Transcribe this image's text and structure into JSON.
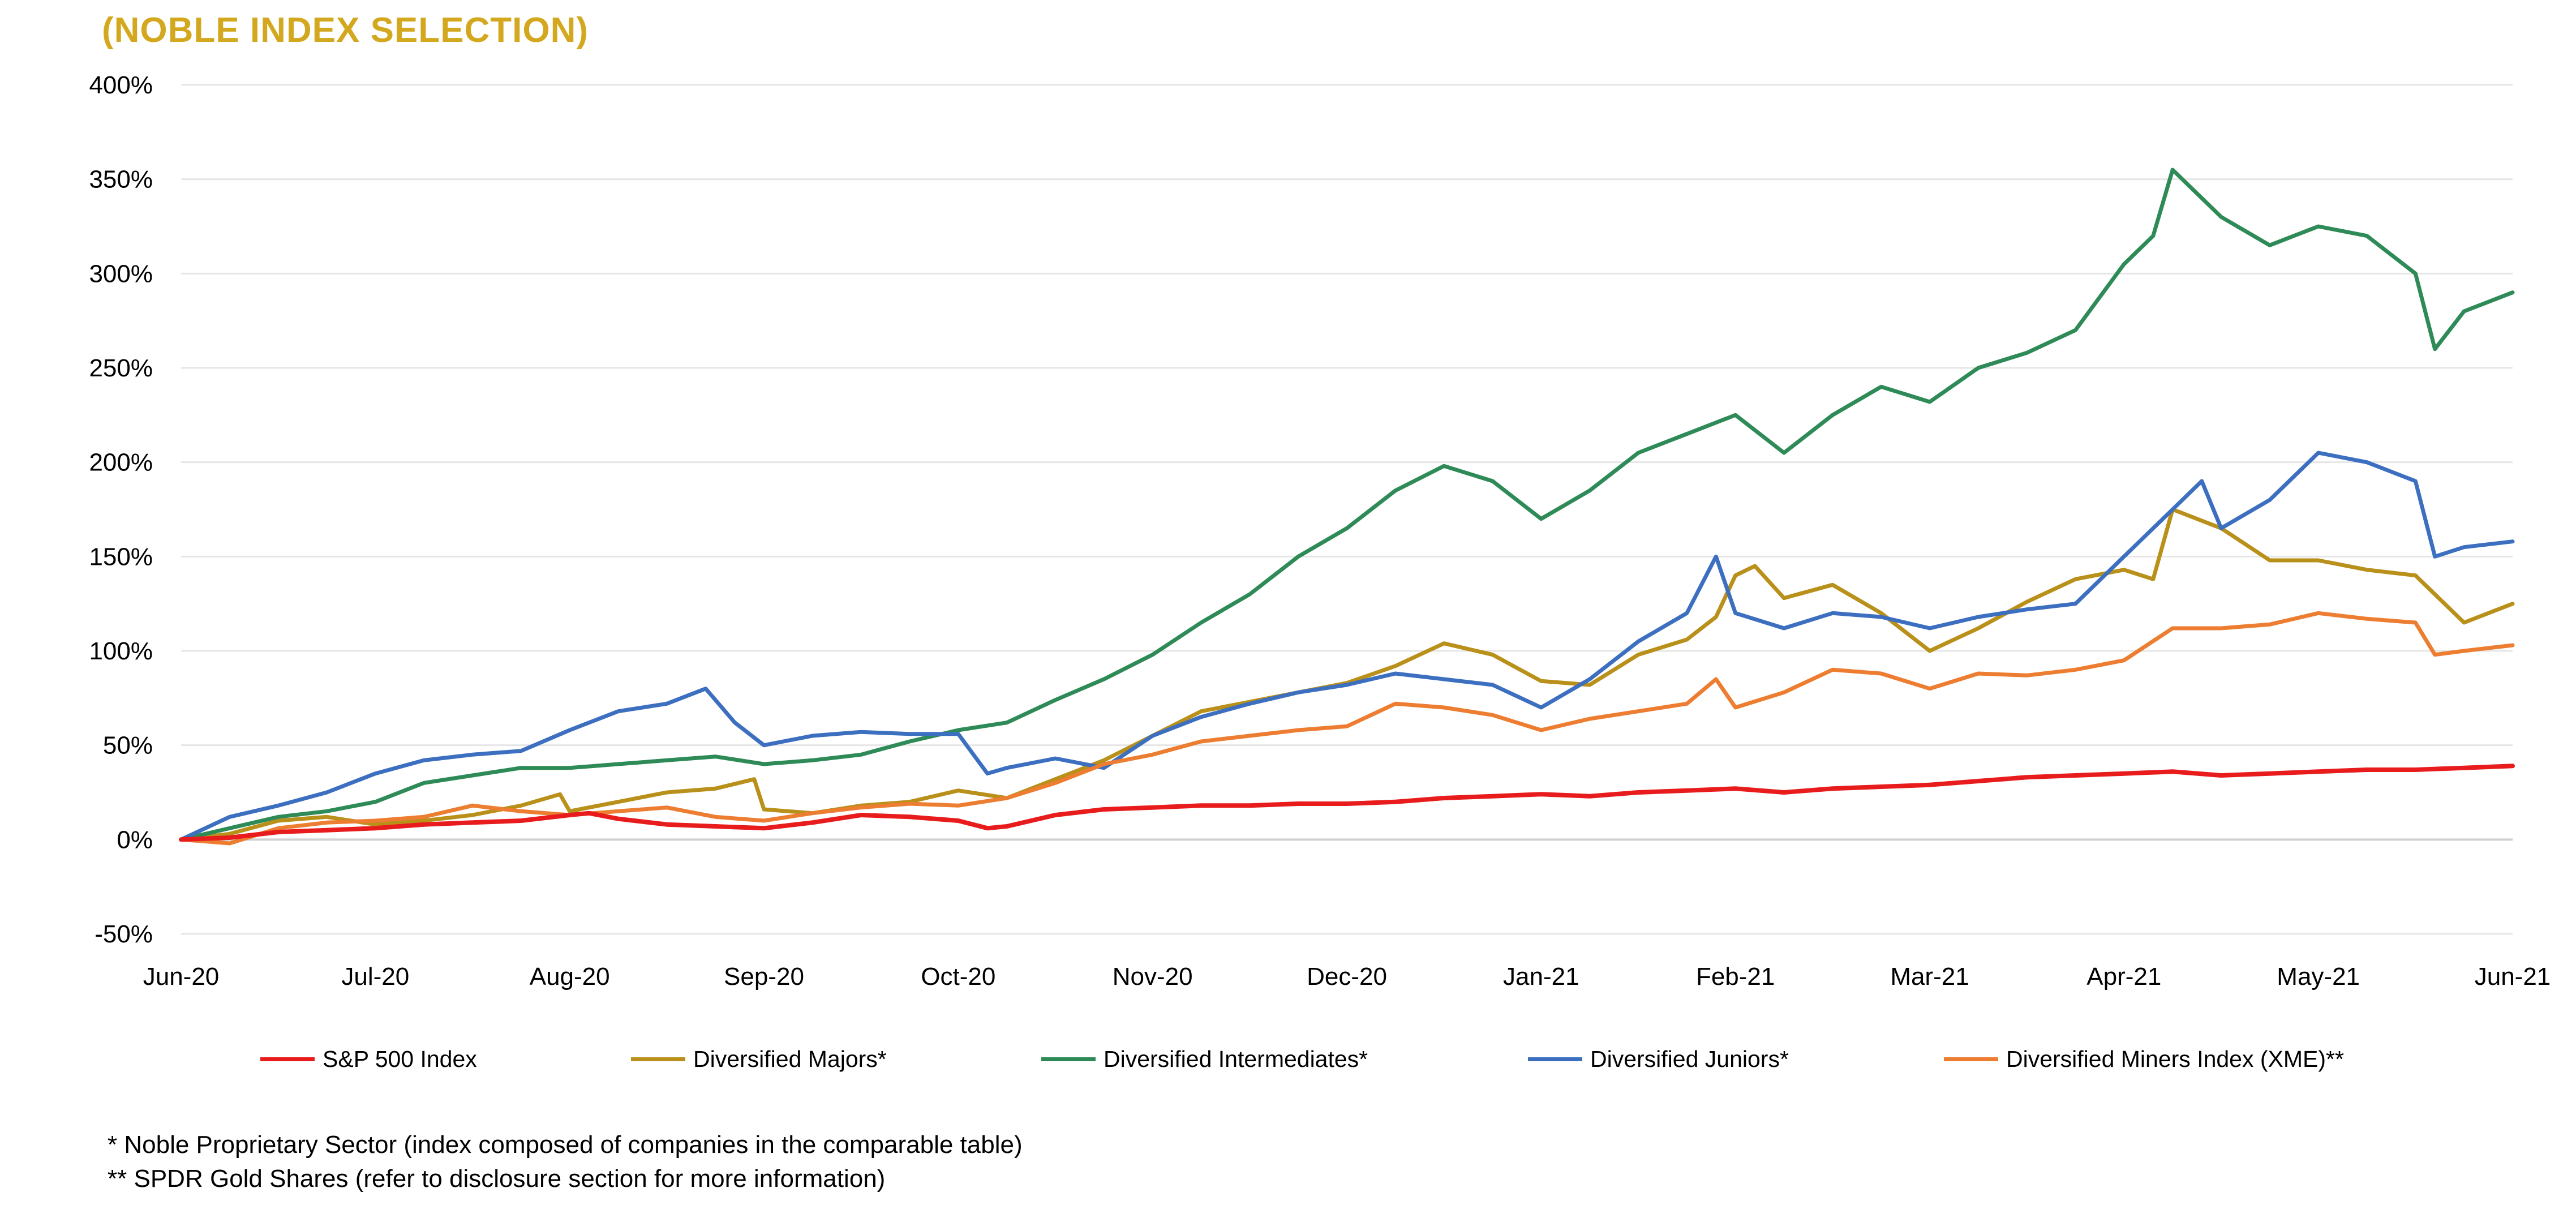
{
  "title": "(NOBLE INDEX SELECTION)",
  "chart_data": {
    "type": "line",
    "ylim": [
      -50,
      400
    ],
    "y_ticks": [
      "-50%",
      "0%",
      "50%",
      "100%",
      "150%",
      "200%",
      "250%",
      "300%",
      "350%",
      "400%"
    ],
    "y_tick_values": [
      -50,
      0,
      50,
      100,
      150,
      200,
      250,
      300,
      350,
      400
    ],
    "x_ticks": [
      "Jun-20",
      "Jul-20",
      "Aug-20",
      "Sep-20",
      "Oct-20",
      "Nov-20",
      "Dec-20",
      "Jan-21",
      "Feb-21",
      "Mar-21",
      "Apr-21",
      "May-21",
      "Jun-21"
    ],
    "x_tick_positions": [
      0,
      1,
      2,
      3,
      4,
      5,
      6,
      7,
      8,
      9,
      10,
      11,
      12
    ],
    "grid": true,
    "legend_position": "bottom",
    "series": [
      {
        "name": "S&P 500 Index",
        "color": "#E81C1C",
        "points": [
          [
            0,
            0
          ],
          [
            0.25,
            1
          ],
          [
            0.5,
            4
          ],
          [
            0.75,
            5
          ],
          [
            1,
            6
          ],
          [
            1.25,
            8
          ],
          [
            1.5,
            9
          ],
          [
            1.75,
            10
          ],
          [
            2,
            13
          ],
          [
            2.1,
            14
          ],
          [
            2.25,
            11
          ],
          [
            2.5,
            8
          ],
          [
            2.75,
            7
          ],
          [
            3,
            6
          ],
          [
            3.25,
            9
          ],
          [
            3.5,
            13
          ],
          [
            3.75,
            12
          ],
          [
            4,
            10
          ],
          [
            4.15,
            6
          ],
          [
            4.25,
            7
          ],
          [
            4.5,
            13
          ],
          [
            4.75,
            16
          ],
          [
            5,
            17
          ],
          [
            5.25,
            18
          ],
          [
            5.5,
            18
          ],
          [
            5.75,
            19
          ],
          [
            6,
            19
          ],
          [
            6.25,
            20
          ],
          [
            6.5,
            22
          ],
          [
            6.75,
            23
          ],
          [
            7,
            24
          ],
          [
            7.25,
            23
          ],
          [
            7.5,
            25
          ],
          [
            7.75,
            26
          ],
          [
            8,
            27
          ],
          [
            8.25,
            25
          ],
          [
            8.5,
            27
          ],
          [
            8.75,
            28
          ],
          [
            9,
            29
          ],
          [
            9.25,
            31
          ],
          [
            9.5,
            33
          ],
          [
            9.75,
            34
          ],
          [
            10,
            35
          ],
          [
            10.25,
            36
          ],
          [
            10.5,
            34
          ],
          [
            10.75,
            35
          ],
          [
            11,
            36
          ],
          [
            11.25,
            37
          ],
          [
            11.5,
            37
          ],
          [
            11.75,
            38
          ],
          [
            12,
            39
          ]
        ]
      },
      {
        "name": "Diversified Majors*",
        "color": "#B8901A",
        "points": [
          [
            0,
            0
          ],
          [
            0.25,
            3
          ],
          [
            0.5,
            10
          ],
          [
            0.75,
            12
          ],
          [
            1,
            8
          ],
          [
            1.25,
            10
          ],
          [
            1.5,
            13
          ],
          [
            1.75,
            18
          ],
          [
            1.95,
            24
          ],
          [
            2,
            15
          ],
          [
            2.25,
            20
          ],
          [
            2.5,
            25
          ],
          [
            2.75,
            27
          ],
          [
            2.95,
            32
          ],
          [
            3,
            16
          ],
          [
            3.25,
            14
          ],
          [
            3.5,
            18
          ],
          [
            3.75,
            20
          ],
          [
            4,
            26
          ],
          [
            4.25,
            22
          ],
          [
            4.5,
            32
          ],
          [
            4.75,
            42
          ],
          [
            5,
            55
          ],
          [
            5.25,
            68
          ],
          [
            5.5,
            73
          ],
          [
            5.75,
            78
          ],
          [
            6,
            83
          ],
          [
            6.25,
            92
          ],
          [
            6.5,
            104
          ],
          [
            6.75,
            98
          ],
          [
            7,
            84
          ],
          [
            7.25,
            82
          ],
          [
            7.5,
            98
          ],
          [
            7.75,
            106
          ],
          [
            7.9,
            118
          ],
          [
            8,
            140
          ],
          [
            8.1,
            145
          ],
          [
            8.25,
            128
          ],
          [
            8.5,
            135
          ],
          [
            8.75,
            120
          ],
          [
            9,
            100
          ],
          [
            9.25,
            112
          ],
          [
            9.5,
            126
          ],
          [
            9.75,
            138
          ],
          [
            10,
            143
          ],
          [
            10.15,
            138
          ],
          [
            10.25,
            175
          ],
          [
            10.5,
            165
          ],
          [
            10.75,
            148
          ],
          [
            11,
            148
          ],
          [
            11.25,
            143
          ],
          [
            11.5,
            140
          ],
          [
            11.75,
            115
          ],
          [
            12,
            125
          ]
        ]
      },
      {
        "name": "Diversified Intermediates*",
        "color": "#2E8B57",
        "points": [
          [
            0,
            0
          ],
          [
            0.25,
            6
          ],
          [
            0.5,
            12
          ],
          [
            0.75,
            15
          ],
          [
            1,
            20
          ],
          [
            1.25,
            30
          ],
          [
            1.5,
            34
          ],
          [
            1.75,
            38
          ],
          [
            2,
            38
          ],
          [
            2.25,
            40
          ],
          [
            2.5,
            42
          ],
          [
            2.75,
            44
          ],
          [
            3,
            40
          ],
          [
            3.25,
            42
          ],
          [
            3.5,
            45
          ],
          [
            3.75,
            52
          ],
          [
            4,
            58
          ],
          [
            4.25,
            62
          ],
          [
            4.5,
            74
          ],
          [
            4.75,
            85
          ],
          [
            5,
            98
          ],
          [
            5.25,
            115
          ],
          [
            5.5,
            130
          ],
          [
            5.75,
            150
          ],
          [
            6,
            165
          ],
          [
            6.25,
            185
          ],
          [
            6.5,
            198
          ],
          [
            6.75,
            190
          ],
          [
            7,
            170
          ],
          [
            7.25,
            185
          ],
          [
            7.5,
            205
          ],
          [
            7.75,
            215
          ],
          [
            8,
            225
          ],
          [
            8.25,
            205
          ],
          [
            8.5,
            225
          ],
          [
            8.75,
            240
          ],
          [
            9,
            232
          ],
          [
            9.25,
            250
          ],
          [
            9.5,
            258
          ],
          [
            9.75,
            270
          ],
          [
            10,
            305
          ],
          [
            10.15,
            320
          ],
          [
            10.25,
            355
          ],
          [
            10.5,
            330
          ],
          [
            10.75,
            315
          ],
          [
            11,
            325
          ],
          [
            11.25,
            320
          ],
          [
            11.5,
            300
          ],
          [
            11.6,
            260
          ],
          [
            11.75,
            280
          ],
          [
            12,
            290
          ]
        ]
      },
      {
        "name": "Diversified Juniors*",
        "color": "#3D6FC0",
        "points": [
          [
            0,
            0
          ],
          [
            0.25,
            12
          ],
          [
            0.5,
            18
          ],
          [
            0.75,
            25
          ],
          [
            1,
            35
          ],
          [
            1.25,
            42
          ],
          [
            1.5,
            45
          ],
          [
            1.75,
            47
          ],
          [
            2,
            58
          ],
          [
            2.25,
            68
          ],
          [
            2.5,
            72
          ],
          [
            2.7,
            80
          ],
          [
            2.85,
            62
          ],
          [
            3,
            50
          ],
          [
            3.25,
            55
          ],
          [
            3.5,
            57
          ],
          [
            3.75,
            56
          ],
          [
            4,
            56
          ],
          [
            4.15,
            35
          ],
          [
            4.25,
            38
          ],
          [
            4.5,
            43
          ],
          [
            4.75,
            38
          ],
          [
            5,
            55
          ],
          [
            5.25,
            65
          ],
          [
            5.5,
            72
          ],
          [
            5.75,
            78
          ],
          [
            6,
            82
          ],
          [
            6.25,
            88
          ],
          [
            6.5,
            85
          ],
          [
            6.75,
            82
          ],
          [
            7,
            70
          ],
          [
            7.25,
            85
          ],
          [
            7.5,
            105
          ],
          [
            7.75,
            120
          ],
          [
            7.9,
            150
          ],
          [
            8,
            120
          ],
          [
            8.25,
            112
          ],
          [
            8.5,
            120
          ],
          [
            8.75,
            118
          ],
          [
            9,
            112
          ],
          [
            9.25,
            118
          ],
          [
            9.5,
            122
          ],
          [
            9.75,
            125
          ],
          [
            10,
            150
          ],
          [
            10.25,
            175
          ],
          [
            10.4,
            190
          ],
          [
            10.5,
            165
          ],
          [
            10.75,
            180
          ],
          [
            11,
            205
          ],
          [
            11.25,
            200
          ],
          [
            11.5,
            190
          ],
          [
            11.6,
            150
          ],
          [
            11.75,
            155
          ],
          [
            12,
            158
          ]
        ]
      },
      {
        "name": "Diversified Miners Index (XME)**",
        "color": "#ED7D31",
        "points": [
          [
            0,
            0
          ],
          [
            0.25,
            -2
          ],
          [
            0.5,
            6
          ],
          [
            0.75,
            9
          ],
          [
            1,
            10
          ],
          [
            1.25,
            12
          ],
          [
            1.5,
            18
          ],
          [
            1.75,
            15
          ],
          [
            2,
            13
          ],
          [
            2.25,
            15
          ],
          [
            2.5,
            17
          ],
          [
            2.75,
            12
          ],
          [
            3,
            10
          ],
          [
            3.25,
            14
          ],
          [
            3.5,
            17
          ],
          [
            3.75,
            19
          ],
          [
            4,
            18
          ],
          [
            4.25,
            22
          ],
          [
            4.5,
            30
          ],
          [
            4.75,
            40
          ],
          [
            5,
            45
          ],
          [
            5.25,
            52
          ],
          [
            5.5,
            55
          ],
          [
            5.75,
            58
          ],
          [
            6,
            60
          ],
          [
            6.25,
            72
          ],
          [
            6.5,
            70
          ],
          [
            6.75,
            66
          ],
          [
            7,
            58
          ],
          [
            7.25,
            64
          ],
          [
            7.5,
            68
          ],
          [
            7.75,
            72
          ],
          [
            7.9,
            85
          ],
          [
            8,
            70
          ],
          [
            8.25,
            78
          ],
          [
            8.5,
            90
          ],
          [
            8.75,
            88
          ],
          [
            9,
            80
          ],
          [
            9.25,
            88
          ],
          [
            9.5,
            87
          ],
          [
            9.75,
            90
          ],
          [
            10,
            95
          ],
          [
            10.25,
            112
          ],
          [
            10.5,
            112
          ],
          [
            10.75,
            114
          ],
          [
            11,
            120
          ],
          [
            11.25,
            117
          ],
          [
            11.5,
            115
          ],
          [
            11.6,
            98
          ],
          [
            11.75,
            100
          ],
          [
            12,
            103
          ]
        ]
      }
    ]
  },
  "legend": [
    {
      "label": "S&P 500 Index",
      "color": "#E81C1C"
    },
    {
      "label": "Diversified Majors*",
      "color": "#B8901A"
    },
    {
      "label": "Diversified Intermediates*",
      "color": "#2E8B57"
    },
    {
      "label": "Diversified Juniors*",
      "color": "#3D6FC0"
    },
    {
      "label": "Diversified Miners Index (XME)**",
      "color": "#ED7D31"
    }
  ],
  "footnotes": [
    "* Noble Proprietary Sector (index composed of companies in the comparable table)",
    "** SPDR Gold Shares (refer to disclosure section for more information)"
  ]
}
